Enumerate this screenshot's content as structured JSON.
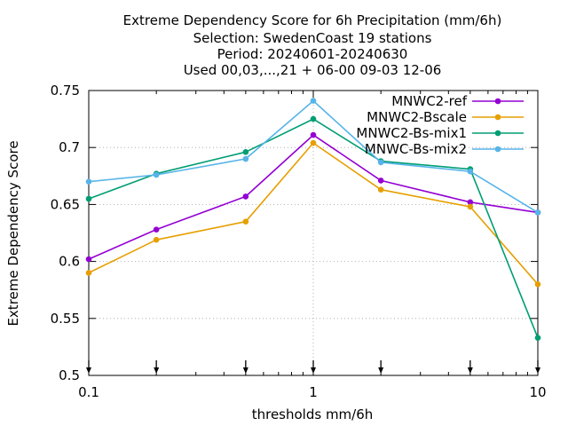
{
  "chart_data": {
    "type": "line",
    "title_lines": [
      "Extreme Dependency Score  for 6h Precipitation (mm/6h)",
      "Selection: SwedenCoast     19 stations",
      "Period: 20240601-20240630",
      "Used 00,03,...,21 + 06-00 09-03 12-06"
    ],
    "xlabel": "thresholds mm/6h",
    "ylabel": "Extreme Dependency Score",
    "x_scale": "log",
    "xlim": [
      0.1,
      10
    ],
    "ylim": [
      0.5,
      0.75
    ],
    "x_ticks": [
      {
        "value": 0.1,
        "label": "0.1"
      },
      {
        "value": 1,
        "label": "1"
      },
      {
        "value": 10,
        "label": "10"
      }
    ],
    "y_ticks": [
      {
        "value": 0.5,
        "label": "0.5"
      },
      {
        "value": 0.55,
        "label": "0.55"
      },
      {
        "value": 0.6,
        "label": "0.6"
      },
      {
        "value": 0.65,
        "label": "0.65"
      },
      {
        "value": 0.7,
        "label": "0.7"
      },
      {
        "value": 0.75,
        "label": "0.75"
      }
    ],
    "grid": true,
    "legend_position": "top-right",
    "arrow_markers_x": [
      0.1,
      0.2,
      0.5,
      1,
      2,
      5,
      10
    ],
    "series": [
      {
        "name": "MNWC2-ref",
        "color": "#9400d3",
        "x": [
          0.1,
          0.2,
          0.5,
          1,
          2,
          5,
          10
        ],
        "values": [
          0.602,
          0.628,
          0.657,
          0.711,
          0.671,
          0.652,
          0.643
        ]
      },
      {
        "name": "MNWC2-Bscale",
        "color": "#e69f00",
        "x": [
          0.1,
          0.2,
          0.5,
          1,
          2,
          5,
          10
        ],
        "values": [
          0.59,
          0.619,
          0.635,
          0.704,
          0.663,
          0.648,
          0.58
        ]
      },
      {
        "name": "MNWC2-Bs-mix1",
        "color": "#009e73",
        "x": [
          0.1,
          0.2,
          0.5,
          1,
          2,
          5,
          10
        ],
        "values": [
          0.655,
          0.677,
          0.696,
          0.725,
          0.688,
          0.681,
          0.533
        ]
      },
      {
        "name": "MNWC-Bs-mix2",
        "color": "#56b4e9",
        "x": [
          0.1,
          0.2,
          0.5,
          1,
          2,
          5,
          10
        ],
        "values": [
          0.67,
          0.676,
          0.69,
          0.741,
          0.687,
          0.679,
          0.643
        ]
      }
    ]
  }
}
